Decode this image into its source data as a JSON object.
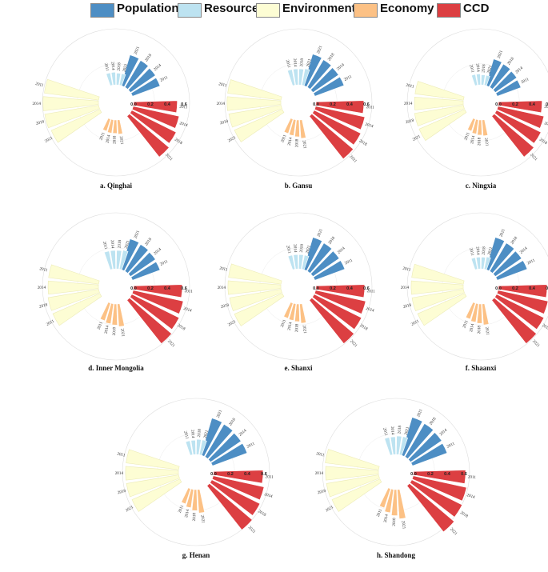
{
  "legend": [
    {
      "name": "Population",
      "color": "#4d8ec4"
    },
    {
      "name": "Resource",
      "color": "#bde3f1"
    },
    {
      "name": "Environment",
      "color": "#fdfdd4"
    },
    {
      "name": "Economy",
      "color": "#fcc185"
    },
    {
      "name": "CCD",
      "color": "#dc3f42"
    }
  ],
  "chart_data": [
    {
      "type": "radial-bar",
      "title": "a. Qinghai",
      "years": [
        "2011",
        "2014",
        "2018",
        "2021"
      ],
      "axis_ticks": [
        "0.0",
        "0.2",
        "0.4",
        "0.6"
      ],
      "rlim": [
        0,
        0.6
      ],
      "series": [
        {
          "name": "Population",
          "values": [
            0.35,
            0.36,
            0.37,
            0.38
          ]
        },
        {
          "name": "Resource",
          "values": [
            0.15,
            0.15,
            0.14,
            0.14
          ]
        },
        {
          "name": "Environment",
          "values": [
            0.65,
            0.66,
            0.65,
            0.63
          ]
        },
        {
          "name": "Economy",
          "values": [
            0.15,
            0.16,
            0.16,
            0.17
          ]
        },
        {
          "name": "CCD",
          "values": [
            0.52,
            0.56,
            0.59,
            0.62
          ]
        }
      ]
    },
    {
      "type": "radial-bar",
      "title": "b. Gansu",
      "years": [
        "2011",
        "2014",
        "2018",
        "2021"
      ],
      "axis_ticks": [
        "0.0",
        "0.2",
        "0.4",
        "0.6"
      ],
      "rlim": [
        0,
        0.6
      ],
      "series": [
        {
          "name": "Population",
          "values": [
            0.37,
            0.37,
            0.38,
            0.39
          ]
        },
        {
          "name": "Resource",
          "values": [
            0.19,
            0.19,
            0.19,
            0.2
          ]
        },
        {
          "name": "Environment",
          "values": [
            0.64,
            0.64,
            0.63,
            0.62
          ]
        },
        {
          "name": "Economy",
          "values": [
            0.18,
            0.19,
            0.2,
            0.22
          ]
        },
        {
          "name": "CCD",
          "values": [
            0.57,
            0.6,
            0.62,
            0.65
          ]
        }
      ]
    },
    {
      "type": "radial-bar",
      "title": "c. Ningxia",
      "years": [
        "2011",
        "2014",
        "2018",
        "2021"
      ],
      "axis_ticks": [
        "0.0",
        "0.2",
        "0.4",
        "0.6"
      ],
      "rlim": [
        0,
        0.6
      ],
      "series": [
        {
          "name": "Population",
          "values": [
            0.3,
            0.31,
            0.32,
            0.33
          ]
        },
        {
          "name": "Resource",
          "values": [
            0.13,
            0.13,
            0.12,
            0.12
          ]
        },
        {
          "name": "Environment",
          "values": [
            0.58,
            0.58,
            0.59,
            0.59
          ]
        },
        {
          "name": "Economy",
          "values": [
            0.15,
            0.17,
            0.18,
            0.19
          ]
        },
        {
          "name": "CCD",
          "values": [
            0.52,
            0.56,
            0.59,
            0.62
          ]
        }
      ]
    },
    {
      "type": "radial-bar",
      "title": "d. Inner Mongolia",
      "years": [
        "2011",
        "2014",
        "2018",
        "2021"
      ],
      "axis_ticks": [
        "0.0",
        "0.2",
        "0.4",
        "0.6"
      ],
      "rlim": [
        0,
        0.6
      ],
      "series": [
        {
          "name": "Population",
          "values": [
            0.35,
            0.36,
            0.37,
            0.38
          ]
        },
        {
          "name": "Resource",
          "values": [
            0.22,
            0.22,
            0.22,
            0.23
          ]
        },
        {
          "name": "Environment",
          "values": [
            0.6,
            0.6,
            0.61,
            0.61
          ]
        },
        {
          "name": "Economy",
          "values": [
            0.22,
            0.24,
            0.25,
            0.27
          ]
        },
        {
          "name": "CCD",
          "values": [
            0.58,
            0.61,
            0.63,
            0.66
          ]
        }
      ]
    },
    {
      "type": "radial-bar",
      "title": "e. Shanxi",
      "years": [
        "2011",
        "2014",
        "2018",
        "2021"
      ],
      "axis_ticks": [
        "0.0",
        "0.2",
        "0.4",
        "0.6"
      ],
      "rlim": [
        0,
        0.6
      ],
      "series": [
        {
          "name": "Population",
          "values": [
            0.38,
            0.38,
            0.39,
            0.4
          ]
        },
        {
          "name": "Resource",
          "values": [
            0.17,
            0.17,
            0.17,
            0.17
          ]
        },
        {
          "name": "Environment",
          "values": [
            0.63,
            0.63,
            0.62,
            0.62
          ]
        },
        {
          "name": "Economy",
          "values": [
            0.19,
            0.2,
            0.21,
            0.23
          ]
        },
        {
          "name": "CCD",
          "values": [
            0.58,
            0.61,
            0.63,
            0.66
          ]
        }
      ]
    },
    {
      "type": "radial-bar",
      "title": "f. Shaanxi",
      "years": [
        "2011",
        "2014",
        "2018",
        "2021"
      ],
      "axis_ticks": [
        "0.0",
        "0.2",
        "0.4",
        "0.6"
      ],
      "rlim": [
        0,
        0.6
      ],
      "series": [
        {
          "name": "Population",
          "values": [
            0.38,
            0.38,
            0.39,
            0.4
          ]
        },
        {
          "name": "Resource",
          "values": [
            0.14,
            0.14,
            0.14,
            0.15
          ]
        },
        {
          "name": "Environment",
          "values": [
            0.62,
            0.62,
            0.62,
            0.61
          ]
        },
        {
          "name": "Economy",
          "values": [
            0.2,
            0.22,
            0.23,
            0.25
          ]
        },
        {
          "name": "CCD",
          "values": [
            0.58,
            0.61,
            0.63,
            0.66
          ]
        }
      ]
    },
    {
      "type": "radial-bar",
      "title": "g. Henan",
      "years": [
        "2011",
        "2014",
        "2018",
        "2021"
      ],
      "axis_ticks": [
        "0.0",
        "0.2",
        "0.4",
        "0.6"
      ],
      "rlim": [
        0,
        0.6
      ],
      "series": [
        {
          "name": "Population",
          "values": [
            0.44,
            0.44,
            0.45,
            0.46
          ]
        },
        {
          "name": "Resource",
          "values": [
            0.17,
            0.17,
            0.18,
            0.18
          ]
        },
        {
          "name": "Environment",
          "values": [
            0.63,
            0.63,
            0.63,
            0.62
          ]
        },
        {
          "name": "Economy",
          "values": [
            0.19,
            0.22,
            0.25,
            0.28
          ]
        },
        {
          "name": "CCD",
          "values": [
            0.59,
            0.62,
            0.64,
            0.67
          ]
        }
      ]
    },
    {
      "type": "radial-bar",
      "title": "h. Shandong",
      "years": [
        "2011",
        "2014",
        "2018",
        "2021"
      ],
      "axis_ticks": [
        "0.0",
        "0.2",
        "0.4",
        "0.6"
      ],
      "rlim": [
        0,
        0.6
      ],
      "series": [
        {
          "name": "Population",
          "values": [
            0.44,
            0.45,
            0.46,
            0.47
          ]
        },
        {
          "name": "Resource",
          "values": [
            0.21,
            0.21,
            0.22,
            0.22
          ]
        },
        {
          "name": "Environment",
          "values": [
            0.64,
            0.63,
            0.63,
            0.62
          ]
        },
        {
          "name": "Economy",
          "values": [
            0.24,
            0.28,
            0.31,
            0.35
          ]
        },
        {
          "name": "CCD",
          "values": [
            0.62,
            0.65,
            0.67,
            0.7
          ]
        }
      ]
    }
  ]
}
